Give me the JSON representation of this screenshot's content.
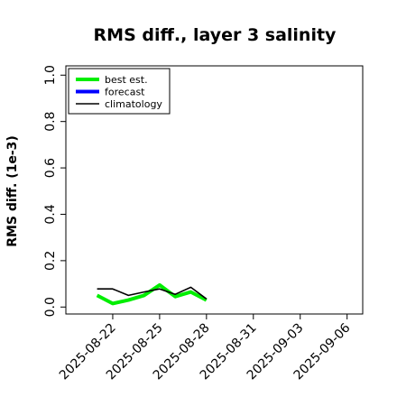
{
  "chart_data": {
    "type": "line",
    "title": "RMS diff., layer 3 salinity",
    "xlabel": "",
    "ylabel": "RMS diff. (1e-3)",
    "x_ticks": [
      "2025-08-22",
      "2025-08-25",
      "2025-08-28",
      "2025-08-31",
      "2025-09-03",
      "2025-09-06"
    ],
    "highlight_tick": "2025-08-28",
    "highlight_color": "#228B22",
    "x_range": [
      "2025-08-19",
      "2025-09-07"
    ],
    "ylim": [
      -0.03,
      1.04
    ],
    "y_ticks": [
      "0.0",
      "0.2",
      "0.4",
      "0.6",
      "0.8",
      "1.0"
    ],
    "grid": false,
    "legend_position": "top-left",
    "series": [
      {
        "name": "best est.",
        "color": "#00ee00",
        "x": [
          "2025-08-21",
          "2025-08-22",
          "2025-08-23",
          "2025-08-24",
          "2025-08-25",
          "2025-08-26",
          "2025-08-27",
          "2025-08-28"
        ],
        "y": [
          0.05,
          0.015,
          0.03,
          0.05,
          0.095,
          0.045,
          0.065,
          0.03
        ]
      },
      {
        "name": "forecast",
        "color": "#0000ff",
        "x": [],
        "y": []
      },
      {
        "name": "climatology",
        "color": "#000000",
        "x": [
          "2025-08-21",
          "2025-08-22",
          "2025-08-23",
          "2025-08-24",
          "2025-08-25",
          "2025-08-26",
          "2025-08-27",
          "2025-08-28"
        ],
        "y": [
          0.078,
          0.078,
          0.05,
          0.065,
          0.078,
          0.055,
          0.085,
          0.035
        ]
      }
    ]
  }
}
